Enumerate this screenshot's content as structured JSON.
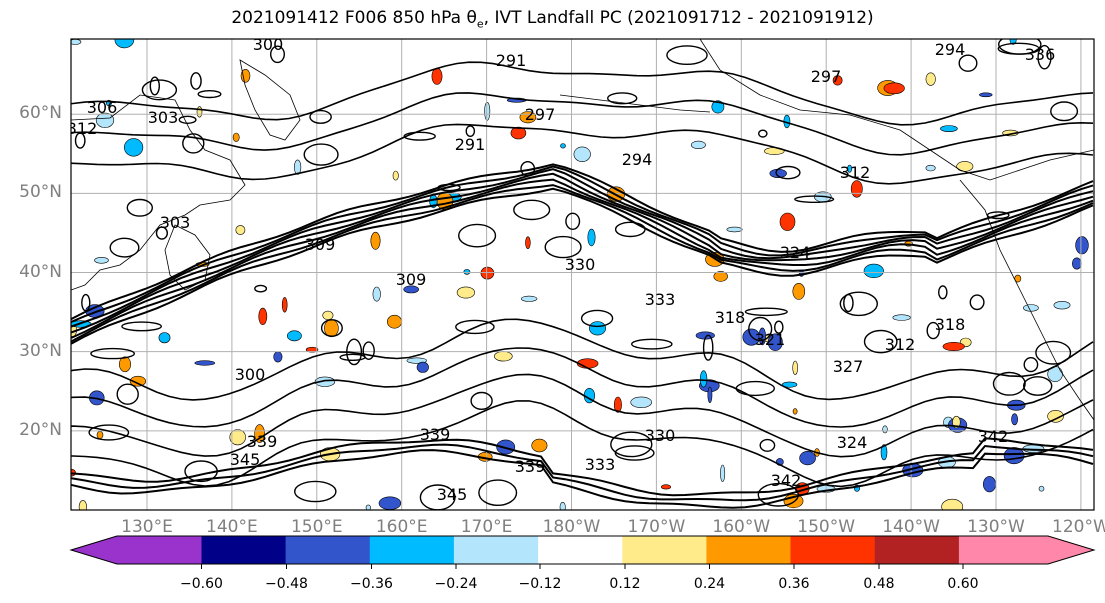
{
  "title": {
    "prefix": "2021091412 F006 850 hPa θ",
    "subscript": "e",
    "suffix": ", IVT Landfall PC (2021091712 - 2021091912)"
  },
  "map": {
    "lat_labels": [
      "60°N",
      "50°N",
      "40°N",
      "30°N",
      "20°N"
    ],
    "lon_labels": [
      "130°E",
      "140°E",
      "150°E",
      "160°E",
      "170°E",
      "180°W",
      "170°W",
      "160°W",
      "150°W",
      "140°W",
      "130°W",
      "120°W"
    ],
    "lat_values": [
      60,
      50,
      40,
      30,
      20
    ],
    "lat_range": [
      10,
      69.5
    ],
    "grid": true,
    "contour_labels": [
      "300",
      "291",
      "297",
      "294",
      "306",
      "303",
      "312",
      "291",
      "297",
      "294",
      "309",
      "330",
      "333",
      "324",
      "321",
      "312",
      "318",
      "327",
      "330",
      "339",
      "345",
      "339",
      "342",
      "333",
      "339",
      "345",
      "324",
      "342",
      "336",
      "312",
      "303",
      "309",
      "300",
      "318"
    ],
    "contour_color": "#000000",
    "coastline_color": "#000000"
  },
  "colorbar": {
    "colors": [
      "#9933cc",
      "#000088",
      "#3355cc",
      "#00bbff",
      "#b3e5fc",
      "#ffffff",
      "#ffeb8a",
      "#ff9900",
      "#ff3300",
      "#b22222",
      "#ff88aa"
    ],
    "tick_labels": [
      "−0.60",
      "−0.48",
      "−0.36",
      "−0.24",
      "−0.12",
      "0.12",
      "0.24",
      "0.36",
      "0.48",
      "0.60"
    ],
    "levels": [
      -0.6,
      -0.48,
      -0.36,
      -0.24,
      -0.12,
      0.12,
      0.24,
      0.36,
      0.48,
      0.6
    ],
    "extend": "both"
  }
}
